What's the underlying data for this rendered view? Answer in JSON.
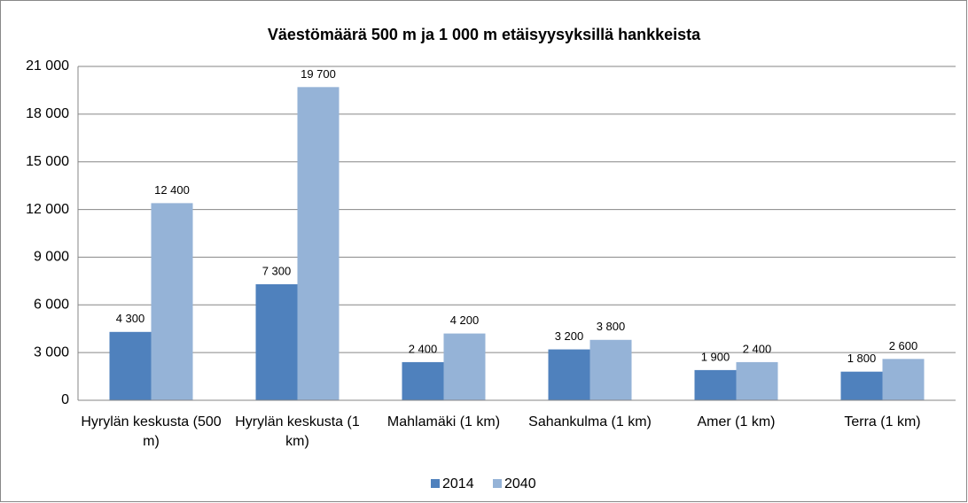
{
  "chart_data": {
    "type": "bar",
    "title": "Väestömäärä 500 m ja 1 000 m etäisyysyksillä hankkeista",
    "categories": [
      "Hyrylän keskusta (500 m)",
      "Hyrylän keskusta (1 km)",
      "Mahlamäki (1 km)",
      "Sahankulma (1 km)",
      "Amer (1 km)",
      "Terra (1 km)"
    ],
    "series": [
      {
        "name": "2014",
        "color": "#4f81bd",
        "values": [
          4300,
          7300,
          2400,
          3200,
          1900,
          1800
        ],
        "value_labels": [
          "4 300",
          "7 300",
          "2 400",
          "3 200",
          "1 900",
          "1 800"
        ]
      },
      {
        "name": "2040",
        "color": "#95b3d7",
        "values": [
          12400,
          19700,
          4200,
          3800,
          2400,
          2600
        ],
        "value_labels": [
          "12 400",
          "19 700",
          "4 200",
          "3 800",
          "2 400",
          "2 600"
        ]
      }
    ],
    "ylim": [
      0,
      21000
    ],
    "yticks": [
      0,
      {
        "value": 3000,
        "label": "3 000"
      },
      {
        "value": 6000,
        "label": "6 000"
      },
      {
        "value": 9000,
        "label": "9 000"
      },
      {
        "value": 12000,
        "label": "12 000"
      },
      {
        "value": 15000,
        "label": "15 000"
      },
      {
        "value": 18000,
        "label": "18 000"
      },
      {
        "value": 21000,
        "label": "21 000"
      }
    ],
    "grid": true,
    "legend": "bottom"
  }
}
